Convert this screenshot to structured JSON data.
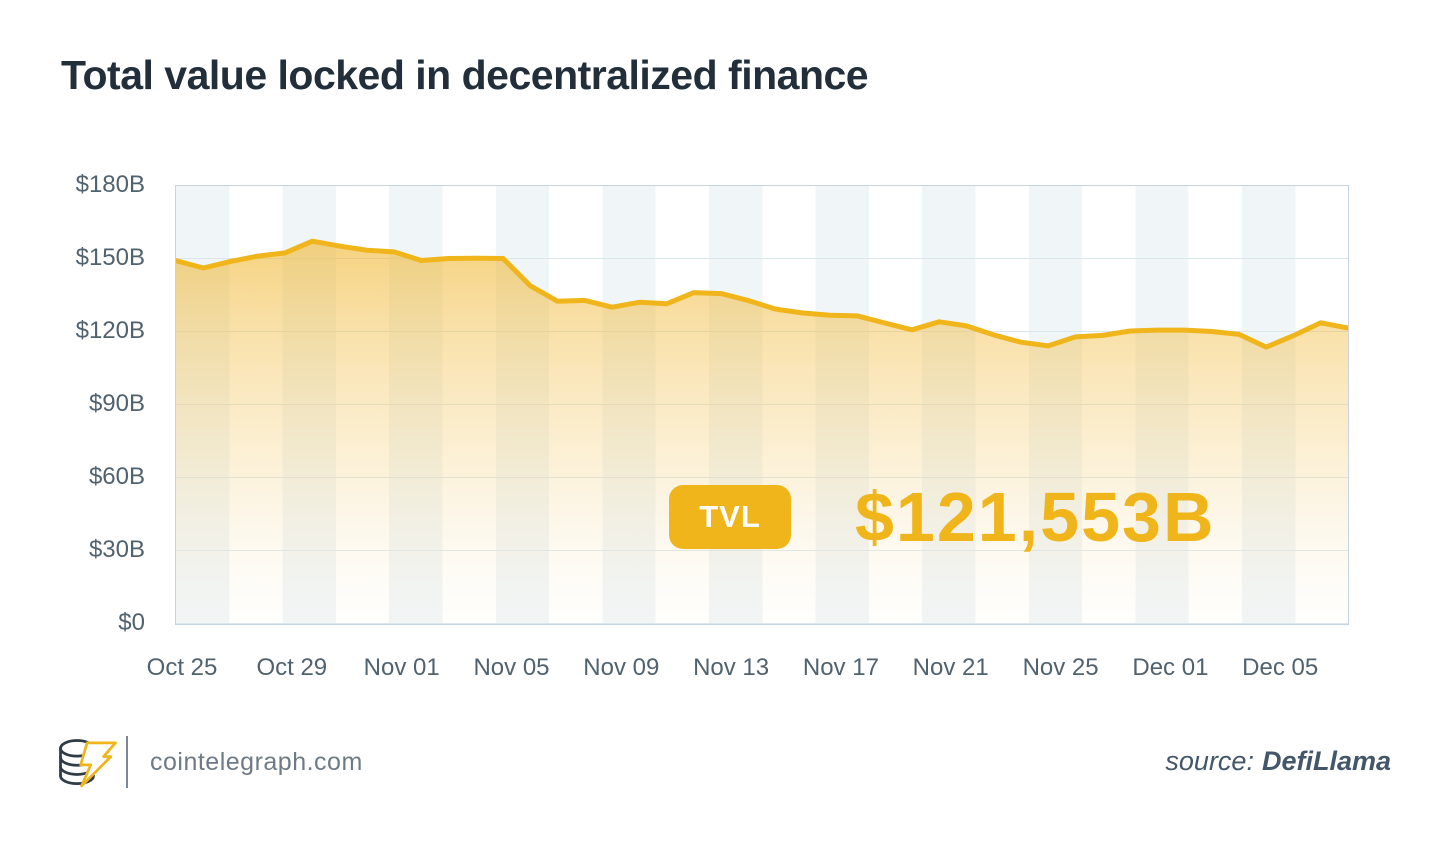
{
  "title": "Total value locked in decentralized finance",
  "chart_data": {
    "type": "area",
    "title": "Total value locked in decentralized finance",
    "unit": "USD billions",
    "ylim": [
      0,
      180
    ],
    "y_tick_step": 30,
    "grid": "horizontal",
    "legend_position": "none",
    "y_tick_labels": [
      "$180B",
      "$150B",
      "$120B",
      "$90B",
      "$60B",
      "$30B",
      "$0"
    ],
    "x_tick_labels": [
      "Oct 25",
      "Oct 29",
      "Nov 01",
      "Nov 05",
      "Nov 09",
      "Nov 13",
      "Nov 17",
      "Nov 21",
      "Nov 25",
      "Dec 01",
      "Dec 05"
    ],
    "series": [
      {
        "name": "TVL",
        "values": [
          149.3,
          146.3,
          149.0,
          151.2,
          152.5,
          157.3,
          155.3,
          153.6,
          152.9,
          149.4,
          150.2,
          150.3,
          150.2,
          139.0,
          132.6,
          133.0,
          130.2,
          132.2,
          131.6,
          136.2,
          135.8,
          132.9,
          129.4,
          127.8,
          126.9,
          126.6,
          123.7,
          120.9,
          124.2,
          122.5,
          118.8,
          115.8,
          114.3,
          118.0,
          118.6,
          120.4,
          120.8,
          120.8,
          120.2,
          119.0,
          113.8,
          118.5,
          123.8,
          121.6
        ]
      }
    ],
    "annotation": {
      "badge": "TVL",
      "value": "$121,553B"
    }
  },
  "footer": {
    "brand": "cointelegraph.com",
    "source_label": "source:",
    "source_name": "DefiLlama"
  },
  "colors": {
    "accent_gold": "#f0b51b",
    "area_fill_top": "rgba(240,181,43,0.60)",
    "area_fill_mid": "rgba(245,210,130,0.35)",
    "area_fill_bottom": "rgba(250,243,225,0.10)",
    "title_text": "#222f3b",
    "axis_text": "#51626f",
    "plot_border": "#c6d4df",
    "stripe": "#f0f5f7",
    "gridline": "#d9e6ec",
    "brand_text": "#6e7a85",
    "source_text": "#44566a"
  }
}
